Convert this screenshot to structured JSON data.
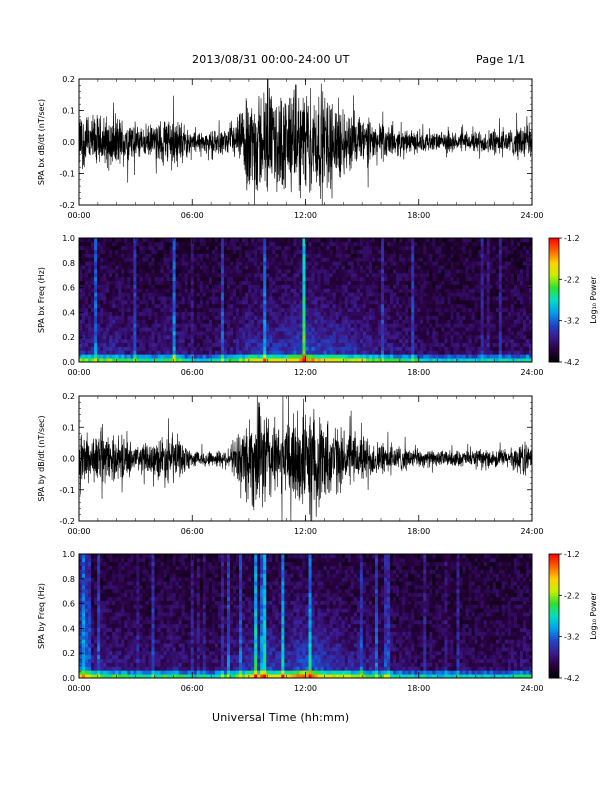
{
  "header": {
    "title": "2013/08/31  00:00-24:00 UT",
    "page": "Page 1/1"
  },
  "footer": {
    "xlabel": "Universal Time (hh:mm)"
  },
  "colors": {
    "trace": "#000000",
    "colormap": [
      "#000000",
      "#2a0040",
      "#3b1a8a",
      "#2046c8",
      "#00a0f0",
      "#00e0c0",
      "#30e030",
      "#c8f000",
      "#ffd000",
      "#ff6000",
      "#ff0000"
    ]
  },
  "chart_data": [
    {
      "type": "line",
      "ylabel": "SPA bx dB/dt (nT/sec)",
      "x_range_hours": [
        0,
        24
      ],
      "x_ticks": [
        "00:00",
        "06:00",
        "12:00",
        "18:00",
        "24:00"
      ],
      "ylim": [
        -0.2,
        0.2
      ],
      "y_ticks": [
        "-0.2",
        "-0.1",
        "0.0",
        "0.1",
        "0.2"
      ],
      "envelope": {
        "hours": [
          0,
          1,
          2,
          3,
          4,
          4.5,
          5,
          5.5,
          6,
          7,
          8,
          8.5,
          9,
          10,
          10.5,
          11,
          11.5,
          12,
          12.5,
          13,
          14,
          15,
          16,
          17,
          18,
          19,
          20,
          21,
          22,
          23,
          23.5,
          24
        ],
        "amplitude": [
          0.11,
          0.1,
          0.1,
          0.07,
          0.06,
          0.1,
          0.11,
          0.07,
          0.04,
          0.04,
          0.05,
          0.1,
          0.2,
          0.2,
          0.17,
          0.2,
          0.2,
          0.2,
          0.2,
          0.2,
          0.13,
          0.1,
          0.07,
          0.05,
          0.04,
          0.035,
          0.035,
          0.04,
          0.05,
          0.05,
          0.08,
          0.06
        ]
      }
    },
    {
      "type": "heatmap",
      "ylabel": "SPA bx Freq (Hz)",
      "x_range_hours": [
        0,
        24
      ],
      "x_ticks": [
        "00:00",
        "06:00",
        "12:00",
        "18:00",
        "24:00"
      ],
      "ylim": [
        0,
        1.0
      ],
      "y_ticks": [
        "0.0",
        "0.2",
        "0.4",
        "0.6",
        "0.8",
        "1.0"
      ],
      "colorbar": {
        "label": "Log₁₀ Power",
        "range": [
          -4.2,
          -1.2
        ],
        "ticks": [
          "-1.2",
          "-2.2",
          "-3.2",
          "-4.2"
        ]
      },
      "activity": {
        "hours": [
          0,
          1,
          2,
          3,
          4,
          5,
          6,
          7,
          8,
          9,
          10,
          11,
          12,
          13,
          14,
          15,
          16,
          17,
          18,
          19,
          20,
          21,
          22,
          23,
          24
        ],
        "level": [
          0.45,
          0.4,
          0.45,
          0.3,
          0.3,
          0.45,
          0.2,
          0.25,
          0.35,
          0.55,
          0.6,
          0.6,
          0.8,
          0.65,
          0.55,
          0.5,
          0.4,
          0.35,
          0.25,
          0.2,
          0.2,
          0.2,
          0.2,
          0.25,
          0.3
        ]
      }
    },
    {
      "type": "line",
      "ylabel": "SPA by dB/dt (nT/sec)",
      "x_range_hours": [
        0,
        24
      ],
      "x_ticks": [
        "00:00",
        "06:00",
        "12:00",
        "18:00",
        "24:00"
      ],
      "ylim": [
        -0.2,
        0.2
      ],
      "y_ticks": [
        "-0.2",
        "-0.1",
        "0.0",
        "0.1",
        "0.2"
      ],
      "envelope": {
        "hours": [
          0,
          1,
          2,
          3,
          4,
          4.5,
          5,
          5.5,
          6,
          7,
          8,
          8.5,
          9,
          10,
          10.5,
          11,
          11.5,
          12,
          12.5,
          13,
          14,
          15,
          16,
          17,
          18,
          19,
          20,
          21,
          22,
          23,
          23.5,
          24
        ],
        "amplitude": [
          0.1,
          0.09,
          0.08,
          0.06,
          0.06,
          0.1,
          0.1,
          0.06,
          0.03,
          0.03,
          0.04,
          0.1,
          0.19,
          0.2,
          0.12,
          0.16,
          0.2,
          0.2,
          0.2,
          0.16,
          0.11,
          0.09,
          0.06,
          0.05,
          0.035,
          0.03,
          0.03,
          0.03,
          0.035,
          0.04,
          0.07,
          0.04
        ]
      }
    },
    {
      "type": "heatmap",
      "ylabel": "SPA by Freq (Hz)",
      "x_range_hours": [
        0,
        24
      ],
      "x_ticks": [
        "00:00",
        "06:00",
        "12:00",
        "18:00",
        "24:00"
      ],
      "ylim": [
        0,
        1.0
      ],
      "y_ticks": [
        "0.0",
        "0.2",
        "0.4",
        "0.6",
        "0.8",
        "1.0"
      ],
      "colorbar": {
        "label": "Log₁₀ Power",
        "range": [
          -4.2,
          -1.2
        ],
        "ticks": [
          "-1.2",
          "-2.2",
          "-3.2",
          "-4.2"
        ]
      },
      "activity": {
        "hours": [
          0,
          1,
          2,
          3,
          4,
          5,
          6,
          7,
          8,
          9,
          10,
          11,
          12,
          13,
          14,
          15,
          16,
          17,
          18,
          19,
          20,
          21,
          22,
          23,
          24
        ],
        "level": [
          0.45,
          0.4,
          0.4,
          0.3,
          0.3,
          0.4,
          0.2,
          0.25,
          0.35,
          0.6,
          0.65,
          0.6,
          0.85,
          0.65,
          0.5,
          0.45,
          0.35,
          0.3,
          0.2,
          0.2,
          0.2,
          0.2,
          0.2,
          0.25,
          0.3
        ]
      }
    }
  ]
}
